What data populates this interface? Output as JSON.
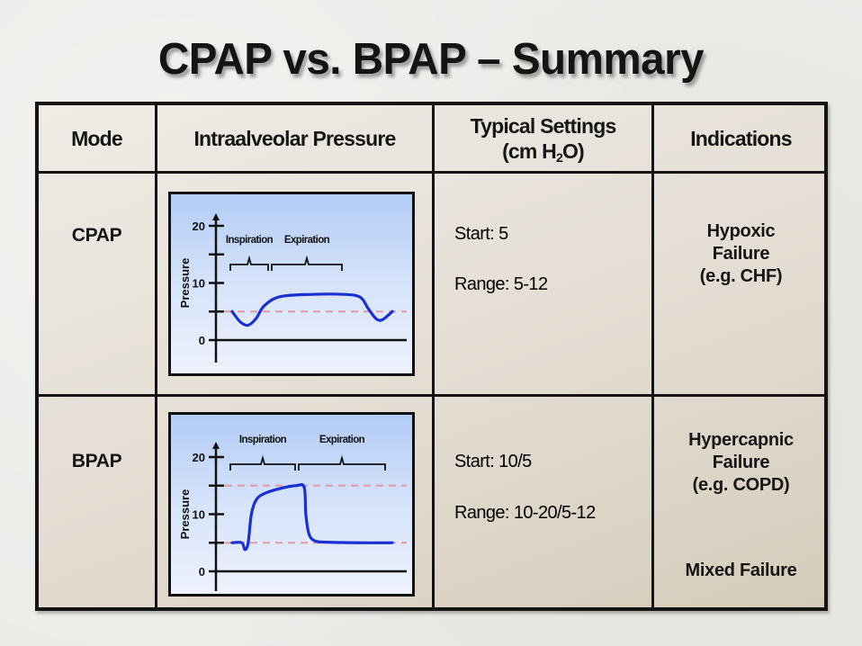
{
  "title": "CPAP vs. BPAP – Summary",
  "table": {
    "headers": {
      "mode": "Mode",
      "pressure": "Intraalveolar Pressure",
      "settings_line1": "Typical Settings",
      "settings_line2_prefix": "(cm H",
      "settings_line2_sub": "2",
      "settings_line2_suffix": "O)",
      "indications": "Indications"
    },
    "rows": [
      {
        "mode": "CPAP",
        "start": "Start: 5",
        "range": "Range: 5-12",
        "indications": [
          "Hypoxic",
          "Failure",
          "(e.g. CHF)"
        ],
        "extra_indication": ""
      },
      {
        "mode": "BPAP",
        "start": "Start: 10/5",
        "range": "Range: 10-20/5-12",
        "indications": [
          "Hypercapnic",
          "Failure",
          "(e.g. COPD)"
        ],
        "extra_indication": "Mixed Failure"
      }
    ]
  },
  "chart_data": [
    {
      "type": "line",
      "name": "CPAP pressure waveform",
      "ylabel": "Pressure",
      "yticks": [
        0,
        5,
        10,
        15,
        20
      ],
      "ytick_labels": [
        "0",
        "10",
        "20"
      ],
      "ylim": [
        -2.5,
        23
      ],
      "phase_labels": [
        "Inspiration",
        "Expiration"
      ],
      "reference_lines": [
        5
      ],
      "series": [
        {
          "name": "pressure",
          "x": [
            0,
            5,
            10,
            15,
            20,
            30,
            50,
            70,
            80,
            85,
            90,
            94,
            100
          ],
          "values": [
            5,
            3.2,
            2.6,
            3.8,
            6,
            7.6,
            8,
            8,
            7.5,
            5.5,
            3.7,
            3.6,
            5
          ]
        }
      ],
      "colors": {
        "line": "#1a2fd6",
        "reference": "#e0a0a8"
      }
    },
    {
      "type": "line",
      "name": "BPAP pressure waveform",
      "ylabel": "Pressure",
      "yticks": [
        0,
        5,
        10,
        15,
        20
      ],
      "ytick_labels": [
        "0",
        "10",
        "20"
      ],
      "ylim": [
        -2.5,
        23
      ],
      "phase_labels": [
        "Inspiration",
        "Expiration"
      ],
      "reference_lines": [
        5,
        15
      ],
      "series": [
        {
          "name": "pressure",
          "x": [
            0,
            6,
            8,
            10,
            12,
            15,
            20,
            30,
            40,
            45,
            46,
            48,
            52,
            60,
            80,
            100
          ],
          "values": [
            5,
            5,
            3.8,
            5,
            10,
            12.5,
            13.6,
            14.5,
            15,
            14.7,
            10,
            6.5,
            5.3,
            5.1,
            5,
            5
          ]
        }
      ],
      "colors": {
        "line": "#1a2fd6",
        "reference": "#e0a0a8"
      }
    }
  ]
}
